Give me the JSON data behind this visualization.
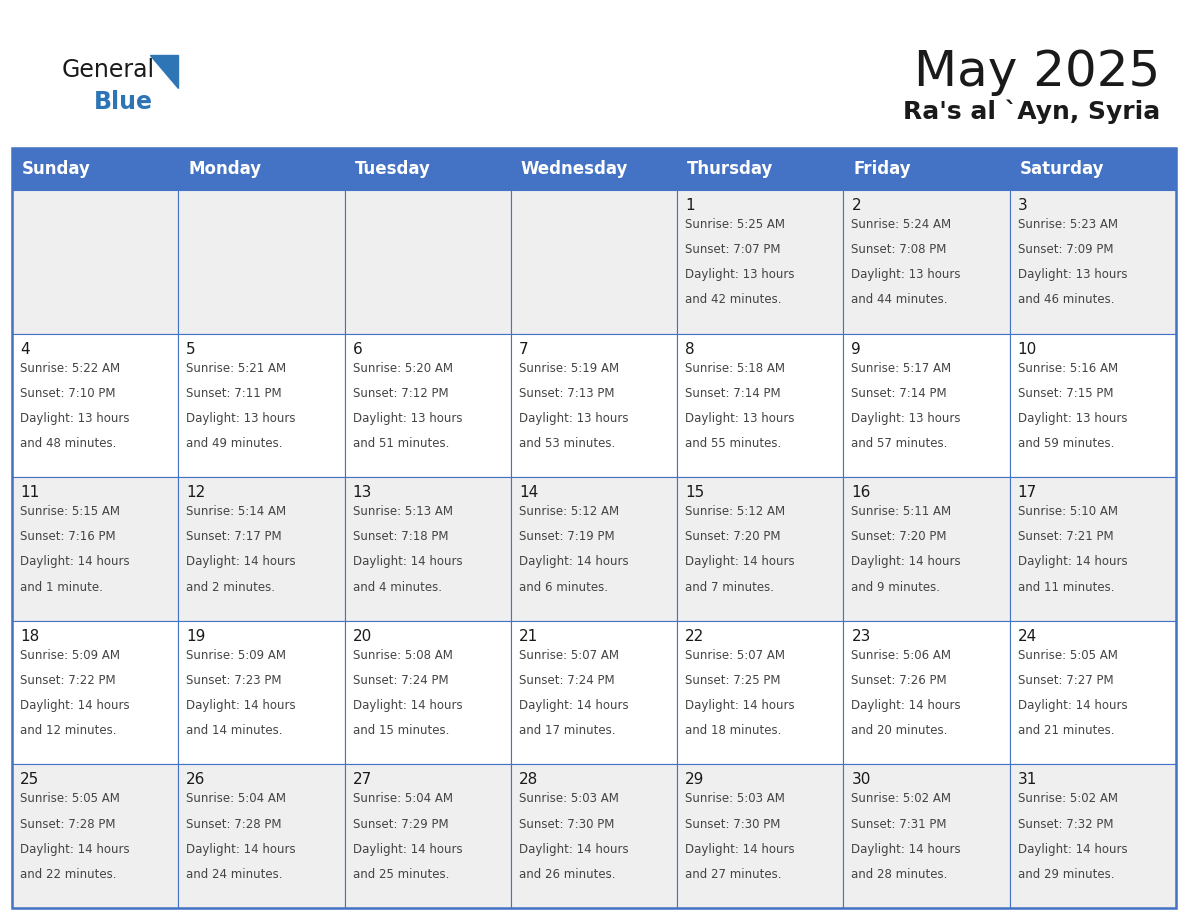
{
  "title": "May 2025",
  "subtitle": "Ra's al `Ayn, Syria",
  "header_bg": "#4472C4",
  "header_text_color": "#FFFFFF",
  "cell_bg_odd": "#EFEFEF",
  "cell_bg_even": "#FFFFFF",
  "day_names": [
    "Sunday",
    "Monday",
    "Tuesday",
    "Wednesday",
    "Thursday",
    "Friday",
    "Saturday"
  ],
  "title_color": "#1a1a1a",
  "subtitle_color": "#1a1a1a",
  "text_color": "#444444",
  "day_num_color": "#1a1a1a",
  "grid_color": "#4472C4",
  "border_color": "#4472C4",
  "calendar": [
    [
      null,
      null,
      null,
      null,
      {
        "day": 1,
        "sunrise": "5:25 AM",
        "sunset": "7:07 PM",
        "daylight": "13 hours and 42 minutes."
      },
      {
        "day": 2,
        "sunrise": "5:24 AM",
        "sunset": "7:08 PM",
        "daylight": "13 hours and 44 minutes."
      },
      {
        "day": 3,
        "sunrise": "5:23 AM",
        "sunset": "7:09 PM",
        "daylight": "13 hours and 46 minutes."
      }
    ],
    [
      {
        "day": 4,
        "sunrise": "5:22 AM",
        "sunset": "7:10 PM",
        "daylight": "13 hours and 48 minutes."
      },
      {
        "day": 5,
        "sunrise": "5:21 AM",
        "sunset": "7:11 PM",
        "daylight": "13 hours and 49 minutes."
      },
      {
        "day": 6,
        "sunrise": "5:20 AM",
        "sunset": "7:12 PM",
        "daylight": "13 hours and 51 minutes."
      },
      {
        "day": 7,
        "sunrise": "5:19 AM",
        "sunset": "7:13 PM",
        "daylight": "13 hours and 53 minutes."
      },
      {
        "day": 8,
        "sunrise": "5:18 AM",
        "sunset": "7:14 PM",
        "daylight": "13 hours and 55 minutes."
      },
      {
        "day": 9,
        "sunrise": "5:17 AM",
        "sunset": "7:14 PM",
        "daylight": "13 hours and 57 minutes."
      },
      {
        "day": 10,
        "sunrise": "5:16 AM",
        "sunset": "7:15 PM",
        "daylight": "13 hours and 59 minutes."
      }
    ],
    [
      {
        "day": 11,
        "sunrise": "5:15 AM",
        "sunset": "7:16 PM",
        "daylight": "14 hours and 1 minute."
      },
      {
        "day": 12,
        "sunrise": "5:14 AM",
        "sunset": "7:17 PM",
        "daylight": "14 hours and 2 minutes."
      },
      {
        "day": 13,
        "sunrise": "5:13 AM",
        "sunset": "7:18 PM",
        "daylight": "14 hours and 4 minutes."
      },
      {
        "day": 14,
        "sunrise": "5:12 AM",
        "sunset": "7:19 PM",
        "daylight": "14 hours and 6 minutes."
      },
      {
        "day": 15,
        "sunrise": "5:12 AM",
        "sunset": "7:20 PM",
        "daylight": "14 hours and 7 minutes."
      },
      {
        "day": 16,
        "sunrise": "5:11 AM",
        "sunset": "7:20 PM",
        "daylight": "14 hours and 9 minutes."
      },
      {
        "day": 17,
        "sunrise": "5:10 AM",
        "sunset": "7:21 PM",
        "daylight": "14 hours and 11 minutes."
      }
    ],
    [
      {
        "day": 18,
        "sunrise": "5:09 AM",
        "sunset": "7:22 PM",
        "daylight": "14 hours and 12 minutes."
      },
      {
        "day": 19,
        "sunrise": "5:09 AM",
        "sunset": "7:23 PM",
        "daylight": "14 hours and 14 minutes."
      },
      {
        "day": 20,
        "sunrise": "5:08 AM",
        "sunset": "7:24 PM",
        "daylight": "14 hours and 15 minutes."
      },
      {
        "day": 21,
        "sunrise": "5:07 AM",
        "sunset": "7:24 PM",
        "daylight": "14 hours and 17 minutes."
      },
      {
        "day": 22,
        "sunrise": "5:07 AM",
        "sunset": "7:25 PM",
        "daylight": "14 hours and 18 minutes."
      },
      {
        "day": 23,
        "sunrise": "5:06 AM",
        "sunset": "7:26 PM",
        "daylight": "14 hours and 20 minutes."
      },
      {
        "day": 24,
        "sunrise": "5:05 AM",
        "sunset": "7:27 PM",
        "daylight": "14 hours and 21 minutes."
      }
    ],
    [
      {
        "day": 25,
        "sunrise": "5:05 AM",
        "sunset": "7:28 PM",
        "daylight": "14 hours and 22 minutes."
      },
      {
        "day": 26,
        "sunrise": "5:04 AM",
        "sunset": "7:28 PM",
        "daylight": "14 hours and 24 minutes."
      },
      {
        "day": 27,
        "sunrise": "5:04 AM",
        "sunset": "7:29 PM",
        "daylight": "14 hours and 25 minutes."
      },
      {
        "day": 28,
        "sunrise": "5:03 AM",
        "sunset": "7:30 PM",
        "daylight": "14 hours and 26 minutes."
      },
      {
        "day": 29,
        "sunrise": "5:03 AM",
        "sunset": "7:30 PM",
        "daylight": "14 hours and 27 minutes."
      },
      {
        "day": 30,
        "sunrise": "5:02 AM",
        "sunset": "7:31 PM",
        "daylight": "14 hours and 28 minutes."
      },
      {
        "day": 31,
        "sunrise": "5:02 AM",
        "sunset": "7:32 PM",
        "daylight": "14 hours and 29 minutes."
      }
    ]
  ],
  "logo_general_color": "#1a1a1a",
  "logo_blue_color": "#2E75B6",
  "logo_triangle_color": "#2E75B6",
  "title_fontsize": 36,
  "subtitle_fontsize": 18,
  "header_fontsize": 12,
  "daynum_fontsize": 11,
  "cell_fontsize": 8.5
}
